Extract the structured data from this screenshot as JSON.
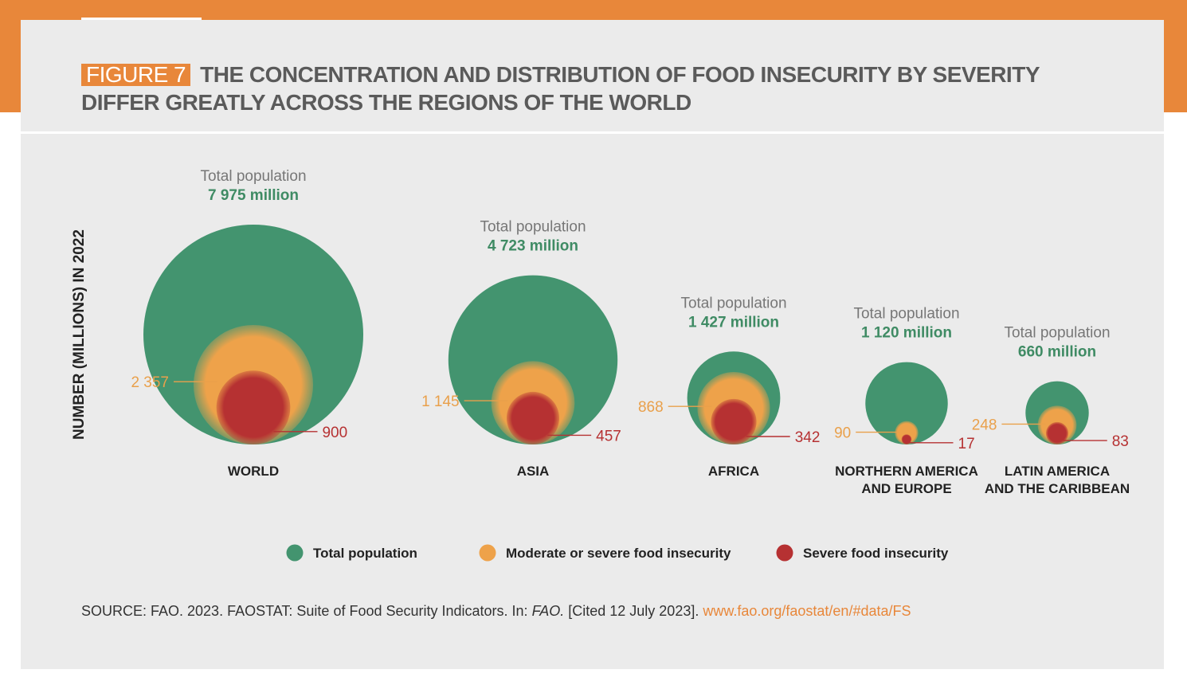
{
  "figure": {
    "badge": "FIGURE 7",
    "title": "THE CONCENTRATION AND DISTRIBUTION OF FOOD INSECURITY BY SEVERITY DIFFER GREATLY ACROSS THE REGIONS OF THE WORLD"
  },
  "source": {
    "prefix": "SOURCE: FAO. 2023. FAOSTAT: Suite of Food Security Indicators. In: ",
    "italic": "FAO.",
    "suffix": " [Cited 12 July 2023]. ",
    "link": "www.fao.org/faostat/en/#data/FS"
  },
  "colors": {
    "total": "#43946f",
    "moderate": "#eea24a",
    "severe": "#b63132",
    "total_text": "#3f8b64",
    "moderate_text": "#e9a04b",
    "severe_text": "#b63132",
    "label_gray": "#777777"
  },
  "chart_data": {
    "type": "bubble",
    "ylabel": "NUMBER (MILLIONS) IN 2022",
    "total_label": "Total population",
    "unit_suffix": " million",
    "legend": [
      {
        "key": "total",
        "label": "Total population"
      },
      {
        "key": "moderate",
        "label": "Moderate or severe food insecurity"
      },
      {
        "key": "severe",
        "label": "Severe food insecurity"
      }
    ],
    "regions": [
      {
        "name": [
          "WORLD"
        ],
        "total": 7975,
        "total_text": "7 975",
        "moderate": 2357,
        "moderate_text": "2 357",
        "severe": 900,
        "severe_text": "900"
      },
      {
        "name": [
          "ASIA"
        ],
        "total": 4723,
        "total_text": "4 723",
        "moderate": 1145,
        "moderate_text": "1 145",
        "severe": 457,
        "severe_text": "457"
      },
      {
        "name": [
          "AFRICA"
        ],
        "total": 1427,
        "total_text": "1 427",
        "moderate": 868,
        "moderate_text": "868",
        "severe": 342,
        "severe_text": "342"
      },
      {
        "name": [
          "NORTHERN AMERICA",
          "AND EUROPE"
        ],
        "total": 1120,
        "total_text": "1 120",
        "moderate": 90,
        "moderate_text": "90",
        "severe": 17,
        "severe_text": "17"
      },
      {
        "name": [
          "LATIN AMERICA",
          "AND THE CARIBBEAN"
        ],
        "total": 660,
        "total_text": "660",
        "moderate": 248,
        "moderate_text": "248",
        "severe": 83,
        "severe_text": "83"
      }
    ]
  }
}
